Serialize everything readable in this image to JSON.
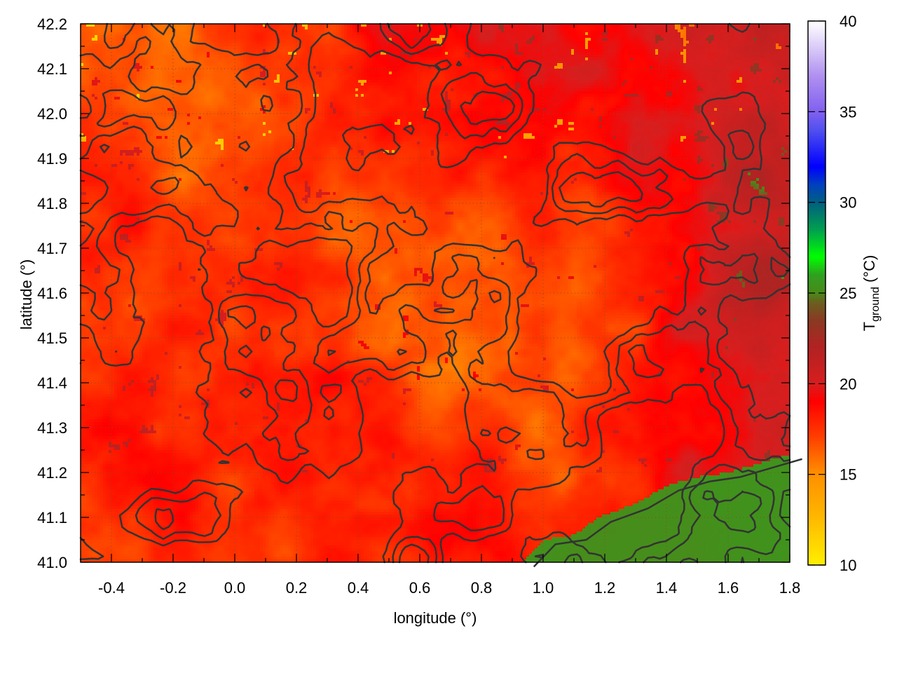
{
  "chart_data": {
    "type": "heatmap",
    "title": "",
    "xlabel": "longitude (°)",
    "ylabel": "latitude (°)",
    "xlim": [
      -0.5,
      1.8
    ],
    "ylim": [
      41.0,
      42.2
    ],
    "xticks": [
      "-0.4",
      "-0.2",
      "0.0",
      "0.2",
      "0.4",
      "0.6",
      "0.8",
      "1.0",
      "1.2",
      "1.4",
      "1.6",
      "1.8"
    ],
    "yticks": [
      "41.0",
      "41.1",
      "41.2",
      "41.3",
      "41.4",
      "41.5",
      "41.6",
      "41.7",
      "41.8",
      "41.9",
      "42.0",
      "42.1",
      "42.2"
    ],
    "grid": true,
    "colorbar": {
      "label_main": "T",
      "label_sub": "ground",
      "label_unit": " (°C)",
      "range": [
        10,
        40
      ],
      "ticks": [
        "10",
        "15",
        "20",
        "25",
        "30",
        "35",
        "40"
      ],
      "palette": [
        [
          10,
          "#ffee00"
        ],
        [
          13,
          "#ffb000"
        ],
        [
          15,
          "#ff9000"
        ],
        [
          17,
          "#ff4000"
        ],
        [
          19,
          "#ff0000"
        ],
        [
          20,
          "#d81e1e"
        ],
        [
          22,
          "#b22222"
        ],
        [
          23.5,
          "#8a3a22"
        ],
        [
          24.5,
          "#6a6020"
        ],
        [
          25,
          "#4a8a1a"
        ],
        [
          26,
          "#30a020"
        ],
        [
          27,
          "#00ff00"
        ],
        [
          28.5,
          "#00a050"
        ],
        [
          30,
          "#006080"
        ],
        [
          31,
          "#0040c0"
        ],
        [
          32,
          "#0000ff"
        ],
        [
          34,
          "#5050f0"
        ],
        [
          35,
          "#8060f0"
        ],
        [
          37,
          "#b090f0"
        ],
        [
          40,
          "#ffffff"
        ]
      ]
    },
    "approx_field": {
      "lon": [
        -0.4,
        -0.1,
        0.2,
        0.5,
        0.8,
        1.1,
        1.4,
        1.7
      ],
      "lat": [
        42.1,
        41.8,
        41.5,
        41.2,
        41.05
      ],
      "values": [
        [
          16.5,
          17,
          17.5,
          19.5,
          19,
          19.5,
          20,
          21
        ],
        [
          18,
          17,
          17.5,
          17,
          17,
          17.5,
          19,
          21.5
        ],
        [
          17.5,
          17.5,
          18,
          16.5,
          16,
          16.5,
          19,
          21
        ],
        [
          18.5,
          18,
          18.5,
          19,
          18,
          17,
          19,
          20
        ],
        [
          18,
          17.5,
          17.5,
          18,
          19,
          18,
          18.5,
          19
        ]
      ],
      "sea_value": 25.3,
      "coastline": [
        [
          0.93,
          41.0
        ],
        [
          1.0,
          41.05
        ],
        [
          1.1,
          41.06
        ],
        [
          1.18,
          41.1
        ],
        [
          1.3,
          41.13
        ],
        [
          1.4,
          41.17
        ],
        [
          1.5,
          41.19
        ],
        [
          1.6,
          41.2
        ],
        [
          1.7,
          41.22
        ],
        [
          1.8,
          41.24
        ]
      ]
    }
  }
}
